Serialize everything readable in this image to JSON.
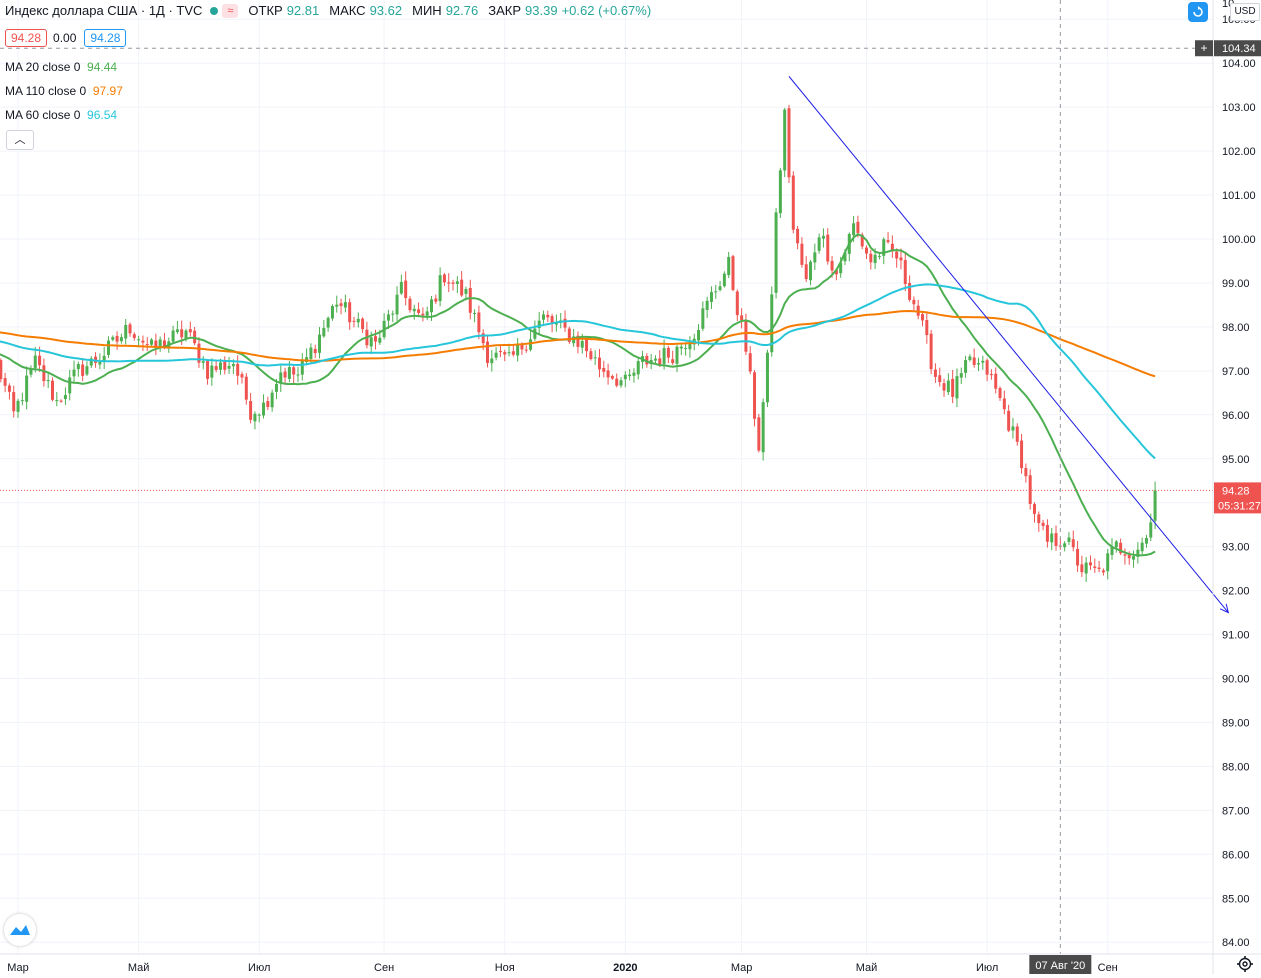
{
  "header": {
    "title": "Индекс доллара США · 1Д · TVC",
    "open_label": "ОТКР",
    "open": "92.81",
    "high_label": "МАКС",
    "high": "93.62",
    "low_label": "МИН",
    "low": "92.76",
    "close_label": "ЗАКР",
    "close": "93.39",
    "change": "+0.62 (+0.67%)",
    "badge_icon": "wave-approx-icon"
  },
  "value_boxes": {
    "bid": "94.28",
    "spread": "0.00",
    "ask": "94.28"
  },
  "indicators": [
    {
      "label": "MA 20 close 0",
      "value": "94.44",
      "color": "#4caf50"
    },
    {
      "label": "MA 110 close 0",
      "value": "97.97",
      "color": "#f57c00"
    },
    {
      "label": "MA 60 close 0",
      "value": "96.54",
      "color": "#26c6da"
    }
  ],
  "currency": "USD",
  "chart_data": {
    "type": "candlestick",
    "symbol": "Индекс доллара США",
    "interval": "1Д",
    "source": "TVC",
    "ylim": [
      83.8,
      106.2
    ],
    "y_ticks": [
      "84.00",
      "85.00",
      "86.00",
      "87.00",
      "88.00",
      "89.00",
      "90.00",
      "91.00",
      "92.00",
      "93.00",
      "94.00",
      "95.00",
      "96.00",
      "97.00",
      "98.00",
      "99.00",
      "100.00",
      "101.00",
      "102.00",
      "103.00",
      "104.00",
      "105.00"
    ],
    "top_partial_tick": "10",
    "x_ticks": [
      {
        "label": "Мар",
        "idx": 5,
        "bold": false
      },
      {
        "label": "Май",
        "idx": 33,
        "bold": false
      },
      {
        "label": "Июл",
        "idx": 61,
        "bold": false
      },
      {
        "label": "Сен",
        "idx": 90,
        "bold": false
      },
      {
        "label": "Ноя",
        "idx": 118,
        "bold": false
      },
      {
        "label": "2020",
        "idx": 146,
        "bold": true
      },
      {
        "label": "Мар",
        "idx": 173,
        "bold": false
      },
      {
        "label": "Май",
        "idx": 202,
        "bold": false
      },
      {
        "label": "Июл",
        "idx": 230,
        "bold": false
      },
      {
        "label": "Сен",
        "idx": 258,
        "bold": false
      }
    ],
    "anchors": [
      [
        0,
        97.2
      ],
      [
        4,
        96.0
      ],
      [
        9,
        97.2
      ],
      [
        14,
        96.3
      ],
      [
        19,
        97.0
      ],
      [
        24,
        97.3
      ],
      [
        31,
        98.0
      ],
      [
        36,
        97.5
      ],
      [
        44,
        97.9
      ],
      [
        49,
        97.0
      ],
      [
        55,
        97.2
      ],
      [
        59,
        96.1
      ],
      [
        62,
        96.2
      ],
      [
        66,
        97.0
      ],
      [
        70,
        96.9
      ],
      [
        75,
        97.8
      ],
      [
        79,
        98.6
      ],
      [
        84,
        98.0
      ],
      [
        88,
        97.6
      ],
      [
        94,
        98.8
      ],
      [
        99,
        98.1
      ],
      [
        104,
        99.2
      ],
      [
        109,
        98.7
      ],
      [
        114,
        97.4
      ],
      [
        119,
        97.2
      ],
      [
        123,
        97.7
      ],
      [
        127,
        98.2
      ],
      [
        132,
        97.9
      ],
      [
        136,
        97.6
      ],
      [
        140,
        97.1
      ],
      [
        146,
        96.7
      ],
      [
        150,
        97.2
      ],
      [
        157,
        97.4
      ],
      [
        162,
        97.9
      ],
      [
        166,
        98.7
      ],
      [
        170,
        99.4
      ],
      [
        174,
        97.5
      ],
      [
        177,
        95.3
      ],
      [
        179,
        97.2
      ],
      [
        181,
        100.5
      ],
      [
        183,
        102.8
      ],
      [
        185,
        100.2
      ],
      [
        188,
        99.0
      ],
      [
        191,
        100.2
      ],
      [
        195,
        99.2
      ],
      [
        199,
        100.3
      ],
      [
        203,
        99.5
      ],
      [
        206,
        99.8
      ],
      [
        209,
        99.6
      ],
      [
        214,
        98.3
      ],
      [
        218,
        96.9
      ],
      [
        222,
        96.5
      ],
      [
        226,
        97.2
      ],
      [
        230,
        97.0
      ],
      [
        234,
        96.1
      ],
      [
        238,
        95.0
      ],
      [
        241,
        93.6
      ],
      [
        244,
        93.1
      ],
      [
        248,
        93.2
      ],
      [
        252,
        92.5
      ],
      [
        256,
        92.4
      ],
      [
        260,
        93.0
      ],
      [
        264,
        92.9
      ],
      [
        267,
        93.2
      ],
      [
        269,
        94.3
      ]
    ],
    "series": [
      {
        "name": "MA 20 close 0",
        "period": 20,
        "color": "#4caf50"
      },
      {
        "name": "MA 110 close 0",
        "period": 110,
        "color": "#f57c00"
      },
      {
        "name": "MA 60 close 0",
        "period": 60,
        "color": "#26c6da"
      }
    ],
    "trendline": {
      "start": {
        "idx": 184,
        "value": 103.7
      },
      "end": {
        "idx": 286,
        "value": 91.5
      },
      "color": "#1e1ee6"
    },
    "last_price": "94.28",
    "countdown": "05:31:27",
    "crosshair": {
      "price": "104.34",
      "date": "07 Авг '20",
      "price_value": 104.34,
      "date_idx": 247
    },
    "grid": true
  }
}
